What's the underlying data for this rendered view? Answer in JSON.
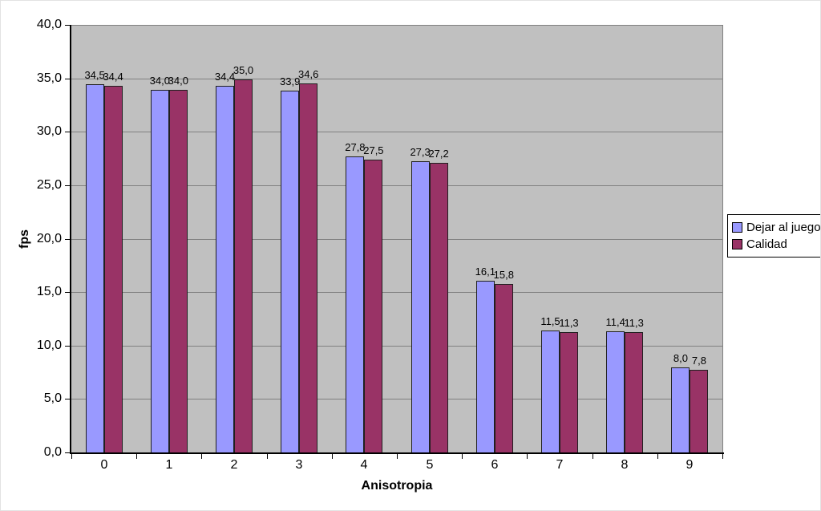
{
  "chart_data": {
    "type": "bar",
    "title": "",
    "xlabel": "Anisotropia",
    "ylabel": "fps",
    "categories": [
      "0",
      "1",
      "2",
      "3",
      "4",
      "5",
      "6",
      "7",
      "8",
      "9"
    ],
    "series": [
      {
        "name": "Dejar al juego",
        "color": "#9999FF",
        "values": [
          34.5,
          34.0,
          34.4,
          33.9,
          27.8,
          27.3,
          16.1,
          11.5,
          11.4,
          8.0
        ],
        "labels": [
          "34,5",
          "34,0",
          "34,4",
          "33,9",
          "27,8",
          "27,3",
          "16,1",
          "11,5",
          "11,4",
          "8,0"
        ]
      },
      {
        "name": "Calidad",
        "color": "#993366",
        "values": [
          34.4,
          34.0,
          35.0,
          34.6,
          27.5,
          27.2,
          15.8,
          11.3,
          11.3,
          7.8
        ],
        "labels": [
          "34,4",
          "34,0",
          "35,0",
          "34,6",
          "27,5",
          "27,2",
          "15,8",
          "11,3",
          "11,3",
          "7,8"
        ]
      }
    ],
    "ylim": [
      0,
      40
    ],
    "y_tick_step": 5,
    "y_tick_labels": [
      "0,0",
      "5,0",
      "10,0",
      "15,0",
      "20,0",
      "25,0",
      "30,0",
      "35,0",
      "40,0"
    ],
    "grid": true,
    "legend_position": "right",
    "plot_bg_color": "#C0C0C0",
    "gridline_color": "#808080",
    "bar_border_color": "#202020"
  }
}
